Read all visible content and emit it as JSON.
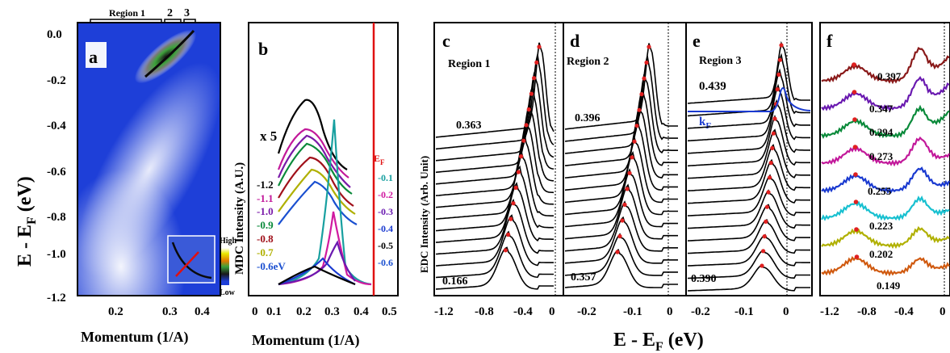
{
  "panel_a": {
    "letter": "a",
    "ylabel": "E - E",
    "ylabel_sub": "F",
    "ylabel_unit": " (eV)",
    "xlabel": "Momentum (1/A)",
    "yticks": [
      "0.0",
      "-0.2",
      "-0.4",
      "-0.6",
      "-0.8",
      "-1.0",
      "-1.2"
    ],
    "xticks": [
      "0.2",
      "0.3",
      "0.4"
    ],
    "regions": [
      "Region 1",
      "2",
      "3"
    ],
    "colorbar_high": "High",
    "colorbar_low": "Low",
    "colors": {
      "map_low": "#1e3fd8",
      "map_mid": "#ffffff",
      "map_high": "#3da23a",
      "band": "#0a0a0a"
    }
  },
  "panel_b": {
    "letter": "b",
    "ylabel": "MDC Intensity (A.U.)",
    "xlabel": "Momentum (1/A)",
    "xticks": [
      "0",
      "0.1",
      "0.2",
      "0.3",
      "0.4",
      "0.5"
    ],
    "scale_note": "x 5",
    "left_labels": [
      {
        "text": "-1.2",
        "color": "#000000"
      },
      {
        "text": "-1.1",
        "color": "#c2189a"
      },
      {
        "text": "-1.0",
        "color": "#7a1aa8"
      },
      {
        "text": "-0.9",
        "color": "#0a8a3a"
      },
      {
        "text": "-0.8",
        "color": "#a0101a"
      },
      {
        "text": "-0.7",
        "color": "#b0b000"
      },
      {
        "text": "-0.6eV",
        "color": "#1a4fd0"
      }
    ],
    "right_labels": [
      {
        "text": "E",
        "sub": "F",
        "color": "#e01010"
      },
      {
        "text": "-0.1",
        "color": "#18a0a0"
      },
      {
        "text": "-0.2",
        "color": "#d01aa0"
      },
      {
        "text": "-0.3",
        "color": "#6a1ab0"
      },
      {
        "text": "-0.4",
        "color": "#1a3ad0"
      },
      {
        "text": "-0.5",
        "color": "#000000"
      },
      {
        "text": "-0.6",
        "color": "#1a4fd0"
      }
    ]
  },
  "panel_c": {
    "letter": "c",
    "region": "Region 1",
    "top_label": "0.363",
    "bottom_label": "0.166",
    "xticks": [
      "-1.2",
      "-0.8",
      "-0.4",
      "0"
    ]
  },
  "panel_d": {
    "letter": "d",
    "region": "Region 2",
    "top_label": "0.396",
    "bottom_label": "0.357",
    "xticks": [
      "-0.2",
      "-0.1",
      "0"
    ]
  },
  "panel_e": {
    "letter": "e",
    "region": "Region 3",
    "top_label": "0.439",
    "kf_label": "k",
    "kf_sub": "F",
    "bottom_label": "0.390",
    "xticks": [
      "-0.2",
      "-0.1",
      "0"
    ]
  },
  "panel_f": {
    "letter": "f",
    "xticks": [
      "-1.2",
      "-0.8",
      "-0.4",
      "0"
    ],
    "labels": [
      "0.397",
      "0.347",
      "0.294",
      "0.273",
      "0.255",
      "0.223",
      "0.202",
      "0.149"
    ],
    "curve_colors": [
      "#8a1a1a",
      "#6a1ab0",
      "#0a8a3a",
      "#c2189a",
      "#1a3ad0",
      "#18c0d0",
      "#b0b000",
      "#d05a10"
    ]
  },
  "edc_ylabel": "EDC Intensity (Arb. Unit)",
  "common_xlabel": "E - E",
  "common_xlabel_sub": "F",
  "common_xlabel_unit": " (eV)",
  "marker_color": "#e02020"
}
